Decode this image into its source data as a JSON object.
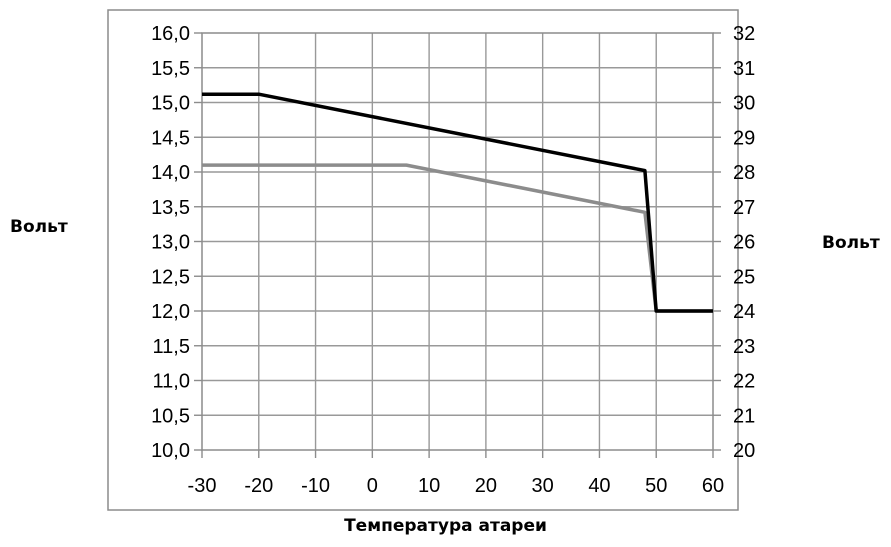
{
  "chart_data": {
    "type": "line",
    "xlabel": "Температура атареи",
    "ylabel_left": "Вольт",
    "ylabel_right": "Вольт",
    "xlim": [
      -30,
      60
    ],
    "ylim_left": [
      10.0,
      16.0
    ],
    "ylim_right": [
      20,
      32
    ],
    "grid": true,
    "x_ticks": [
      "-30",
      "-20",
      "-10",
      "0",
      "10",
      "20",
      "30",
      "40",
      "50",
      "60"
    ],
    "y_ticks_left": [
      "16,0",
      "15,5",
      "15,0",
      "14,5",
      "14,0",
      "13,5",
      "13,0",
      "12,5",
      "12,0",
      "11,5",
      "11,0",
      "10,5",
      "10,0"
    ],
    "y_ticks_right": [
      "32",
      "31",
      "30",
      "29",
      "28",
      "27",
      "26",
      "25",
      "24",
      "23",
      "22",
      "21",
      "20"
    ],
    "series": [
      {
        "color": "#000000",
        "points": [
          [
            -30,
            15.12
          ],
          [
            -20,
            15.12
          ],
          [
            48,
            14.02
          ],
          [
            50,
            12.0
          ],
          [
            60,
            12.0
          ]
        ]
      },
      {
        "color": "#8c8c8c",
        "points": [
          [
            -30,
            14.1
          ],
          [
            6,
            14.1
          ],
          [
            48,
            13.42
          ],
          [
            50,
            12.0
          ],
          [
            60,
            12.0
          ]
        ]
      }
    ]
  }
}
